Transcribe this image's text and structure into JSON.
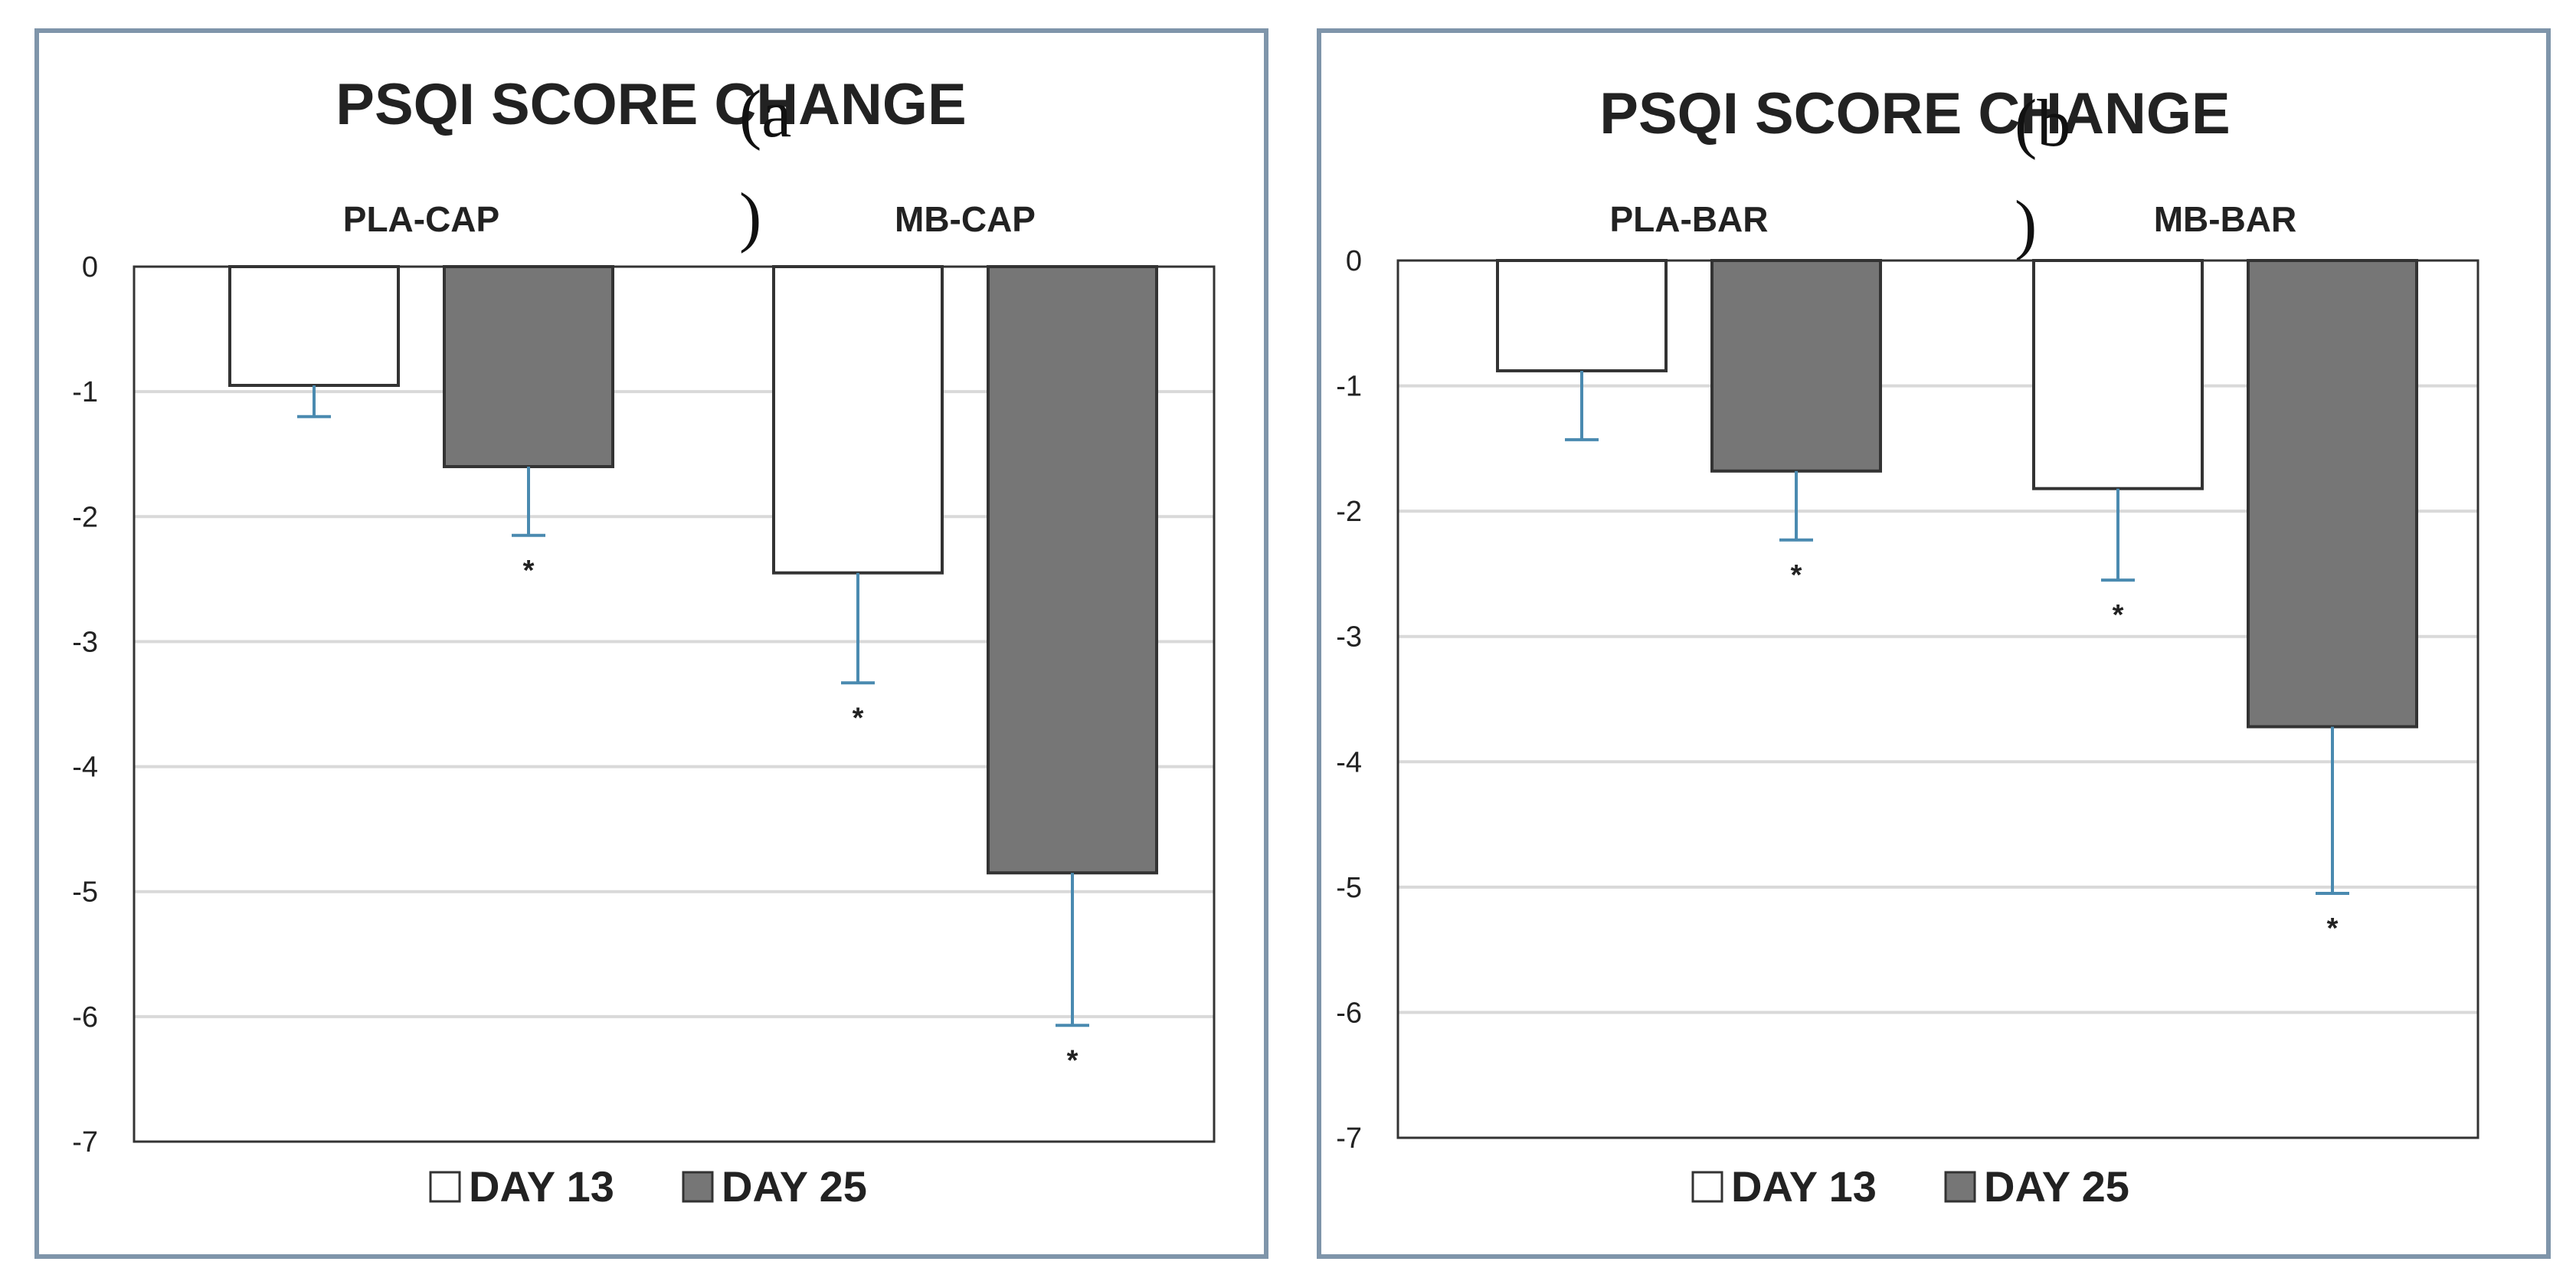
{
  "chart_data": [
    {
      "type": "bar",
      "panel_label": "(a)",
      "title": "PSQI SCORE CHANGE",
      "categories": [
        "PLA-CAP",
        "MB-CAP"
      ],
      "series": [
        {
          "name": "DAY 13",
          "color": "#ffffff",
          "values": [
            -0.95,
            -2.45
          ],
          "error": [
            0.25,
            0.88
          ],
          "significant": [
            false,
            true
          ]
        },
        {
          "name": "DAY 25",
          "color": "#767676",
          "values": [
            -1.6,
            -4.85
          ],
          "error": [
            0.55,
            1.22
          ],
          "significant": [
            true,
            true
          ]
        }
      ],
      "significance_marker": "*",
      "ylim": [
        -7,
        0
      ],
      "yticks": [
        "0",
        "-1",
        "-2",
        "-3",
        "-4",
        "-5",
        "-6",
        "-7"
      ],
      "legend": [
        "DAY 13",
        "DAY 25"
      ],
      "legend_position": "bottom",
      "error_bar_color": "#4a8ab0"
    },
    {
      "type": "bar",
      "panel_label": "(b)",
      "title": "PSQI SCORE CHANGE",
      "categories": [
        "PLA-BAR",
        "MB-BAR"
      ],
      "series": [
        {
          "name": "DAY 13",
          "color": "#ffffff",
          "values": [
            -0.88,
            -1.82
          ],
          "error": [
            0.55,
            0.73
          ],
          "significant": [
            false,
            true
          ]
        },
        {
          "name": "DAY 25",
          "color": "#767676",
          "values": [
            -1.68,
            -3.72
          ],
          "error": [
            0.55,
            1.33
          ],
          "significant": [
            true,
            true
          ]
        }
      ],
      "significance_marker": "*",
      "ylim": [
        -7,
        0
      ],
      "yticks": [
        "0",
        "-1",
        "-2",
        "-3",
        "-4",
        "-5",
        "-6",
        "-7"
      ],
      "legend": [
        "DAY 13",
        "DAY 25"
      ],
      "legend_position": "bottom",
      "error_bar_color": "#4a8ab0"
    }
  ]
}
